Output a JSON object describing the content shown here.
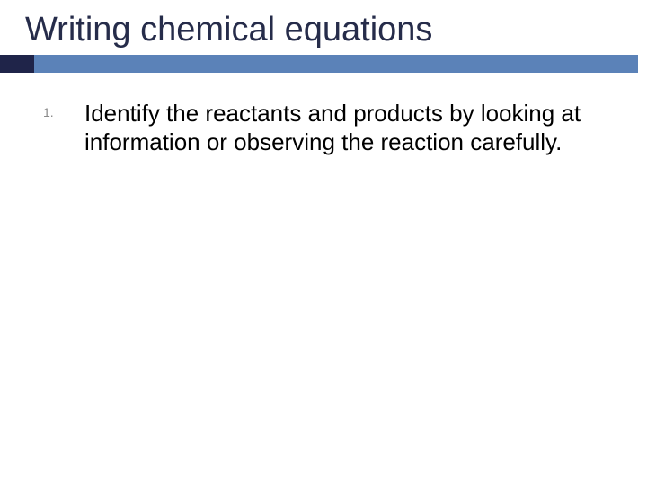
{
  "slide": {
    "title": "Writing chemical equations",
    "list": {
      "items": [
        {
          "number": "1.",
          "text": "Identify the reactants and products by looking at information or observing the reaction carefully."
        }
      ]
    }
  },
  "style": {
    "title_color": "#262c4a",
    "title_fontsize": 38,
    "body_fontsize": 26,
    "body_color": "#000000",
    "number_color": "#8a8a8a",
    "number_fontsize": 14,
    "accent_short_color": "#1f2449",
    "accent_long_color": "#5b82b8",
    "background_color": "#ffffff",
    "accent_bar_height": 20,
    "accent_short_width": 38
  }
}
